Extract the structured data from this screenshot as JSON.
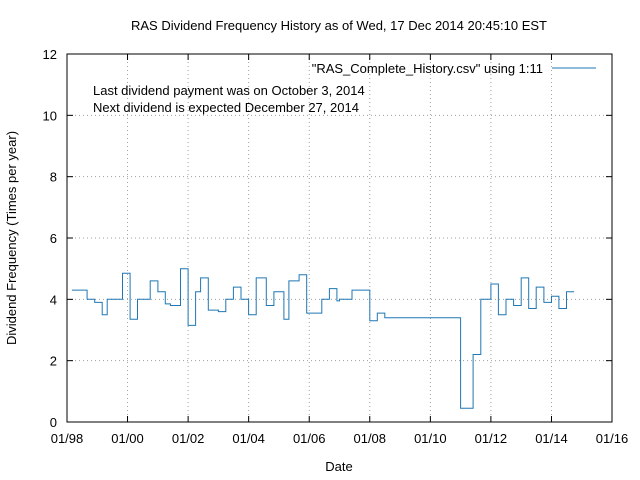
{
  "chart_data": {
    "type": "line",
    "title": "RAS Dividend Frequency History as of Wed, 17 Dec 2014 20:45:10 EST",
    "xlabel": "Date",
    "ylabel": "Dividend Frequency (Times per year)",
    "xlim": [
      "1998-01-01",
      "2016-01-01"
    ],
    "ylim": [
      0,
      12
    ],
    "grid": true,
    "legend_position": "top-right",
    "x_ticks": [
      "01/98",
      "01/00",
      "01/02",
      "01/04",
      "01/06",
      "01/08",
      "01/10",
      "01/12",
      "01/14",
      "01/16"
    ],
    "y_ticks": [
      "0",
      "2",
      "4",
      "6",
      "8",
      "10",
      "12"
    ],
    "annotations": [
      "Last dividend payment was on October 3, 2014",
      "Next dividend is expected December 27, 2014"
    ],
    "series": [
      {
        "name": "\"RAS_Complete_History.csv\" using 1:11",
        "color": "#1f77b4",
        "step": true,
        "points": [
          [
            "1998-03-01",
            4.3
          ],
          [
            "1998-09-01",
            4.0
          ],
          [
            "1998-12-01",
            3.9
          ],
          [
            "1999-03-01",
            3.5
          ],
          [
            "1999-05-01",
            4.0
          ],
          [
            "1999-09-01",
            4.0
          ],
          [
            "1999-11-01",
            4.85
          ],
          [
            "2000-02-01",
            3.35
          ],
          [
            "2000-05-01",
            4.0
          ],
          [
            "2000-10-01",
            4.6
          ],
          [
            "2001-01-01",
            4.25
          ],
          [
            "2001-04-01",
            3.85
          ],
          [
            "2001-06-01",
            3.8
          ],
          [
            "2001-10-01",
            5.0
          ],
          [
            "2002-01-01",
            3.15
          ],
          [
            "2002-04-01",
            4.25
          ],
          [
            "2002-06-01",
            4.7
          ],
          [
            "2002-09-01",
            3.65
          ],
          [
            "2003-01-01",
            3.6
          ],
          [
            "2003-04-01",
            4.0
          ],
          [
            "2003-07-01",
            4.4
          ],
          [
            "2003-10-01",
            4.0
          ],
          [
            "2004-01-01",
            3.5
          ],
          [
            "2004-04-01",
            4.7
          ],
          [
            "2004-08-01",
            3.8
          ],
          [
            "2004-11-01",
            4.25
          ],
          [
            "2005-03-01",
            3.35
          ],
          [
            "2005-05-01",
            4.6
          ],
          [
            "2005-09-01",
            4.8
          ],
          [
            "2005-12-01",
            3.55
          ],
          [
            "2006-06-01",
            4.0
          ],
          [
            "2006-09-01",
            4.35
          ],
          [
            "2006-12-01",
            3.95
          ],
          [
            "2007-01-01",
            4.0
          ],
          [
            "2007-06-01",
            4.3
          ],
          [
            "2008-01-01",
            3.3
          ],
          [
            "2008-04-01",
            3.55
          ],
          [
            "2008-07-01",
            3.4
          ],
          [
            "2011-01-01",
            0.45
          ],
          [
            "2011-06-01",
            2.2
          ],
          [
            "2011-09-01",
            4.0
          ],
          [
            "2012-01-01",
            4.5
          ],
          [
            "2012-04-01",
            3.5
          ],
          [
            "2012-07-01",
            4.0
          ],
          [
            "2012-10-01",
            3.8
          ],
          [
            "2013-01-01",
            4.7
          ],
          [
            "2013-04-01",
            3.7
          ],
          [
            "2013-07-01",
            4.4
          ],
          [
            "2013-10-01",
            3.9
          ],
          [
            "2014-01-01",
            4.1
          ],
          [
            "2014-04-01",
            3.7
          ],
          [
            "2014-07-01",
            4.25
          ],
          [
            "2014-10-01",
            4.25
          ]
        ]
      }
    ]
  }
}
